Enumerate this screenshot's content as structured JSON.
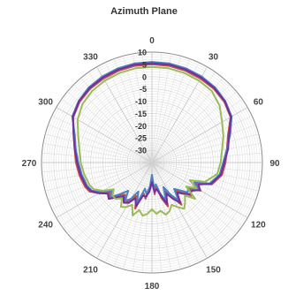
{
  "chart_data": {
    "type": "polar-line",
    "title": "Azimuth Plane",
    "angle_direction": "clockwise",
    "zero_angle_at": "top",
    "angle_ticks": [
      0,
      30,
      60,
      90,
      120,
      150,
      180,
      210,
      240,
      270,
      300,
      330
    ],
    "angle_tick_labels": [
      "0",
      "30",
      "60",
      "90",
      "120",
      "150",
      "180",
      "210",
      "240",
      "270",
      "300",
      "330"
    ],
    "r_range": [
      -35,
      10
    ],
    "r_ticks": [
      10,
      5,
      0,
      -5,
      -10,
      -15,
      -20,
      -25,
      -30
    ],
    "r_tick_labels": [
      "10",
      "5",
      "0",
      "-5",
      "-10",
      "-15",
      "-20",
      "-25",
      "-30"
    ],
    "grid": true,
    "legend": "none",
    "series": [
      {
        "color": "#c0504d",
        "angles": [
          0,
          10,
          20,
          30,
          40,
          50,
          60,
          70,
          80,
          90,
          100,
          110,
          115,
          120,
          125,
          130,
          135,
          140,
          145,
          150,
          155,
          160,
          165,
          170,
          175,
          180,
          185,
          190,
          195,
          200,
          205,
          210,
          215,
          220,
          225,
          230,
          235,
          240,
          245,
          250,
          260,
          270,
          280,
          290,
          300,
          310,
          320,
          330,
          340,
          350
        ],
        "values": [
          5,
          5,
          4.8,
          4.5,
          4.2,
          3.5,
          2,
          -2,
          -4,
          -5,
          -6,
          -9,
          -15,
          -12,
          -16,
          -14,
          -18,
          -20,
          -14,
          -19,
          -22,
          -16,
          -20,
          -25,
          -22,
          -28,
          -24,
          -20,
          -22,
          -15,
          -20,
          -17,
          -15,
          -18,
          -16,
          -12,
          -14,
          -10,
          -7,
          -6,
          -5,
          -4,
          -3,
          -1,
          2,
          3.5,
          4.2,
          4.5,
          4.8,
          5
        ]
      },
      {
        "color": "#4f81bd",
        "angles": [
          0,
          10,
          20,
          30,
          40,
          50,
          60,
          70,
          80,
          90,
          100,
          110,
          115,
          120,
          125,
          130,
          135,
          140,
          145,
          150,
          155,
          160,
          165,
          170,
          175,
          180,
          185,
          190,
          195,
          200,
          205,
          210,
          215,
          220,
          225,
          230,
          235,
          240,
          245,
          250,
          260,
          270,
          280,
          290,
          300,
          310,
          320,
          330,
          340,
          350
        ],
        "values": [
          6,
          6,
          5.8,
          5.5,
          5,
          4,
          2.5,
          -1,
          -4,
          -6,
          -7,
          -10,
          -16,
          -13,
          -17,
          -16,
          -19,
          -21,
          -16,
          -20,
          -24,
          -18,
          -22,
          -26,
          -24,
          -30,
          -25,
          -22,
          -24,
          -17,
          -22,
          -18,
          -16,
          -20,
          -17,
          -13,
          -15,
          -11,
          -8,
          -7,
          -6,
          -5,
          -3.5,
          -1.5,
          2.5,
          4,
          5,
          5.5,
          5.8,
          6
        ]
      },
      {
        "color": "#7030a0",
        "angles": [
          0,
          10,
          20,
          30,
          40,
          50,
          60,
          70,
          80,
          90,
          100,
          110,
          115,
          120,
          125,
          130,
          135,
          140,
          145,
          150,
          155,
          160,
          165,
          170,
          175,
          180,
          185,
          190,
          195,
          200,
          205,
          210,
          215,
          220,
          225,
          230,
          235,
          240,
          245,
          250,
          260,
          270,
          280,
          290,
          300,
          310,
          320,
          330,
          340,
          350
        ],
        "values": [
          5.5,
          5.5,
          5.3,
          5,
          4.6,
          3.8,
          2.2,
          -1.5,
          -3.5,
          -5.5,
          -6.5,
          -9.5,
          -14,
          -12.5,
          -15,
          -15,
          -17,
          -19,
          -15,
          -18,
          -21,
          -17,
          -21,
          -24,
          -23,
          -27,
          -23,
          -21,
          -21,
          -16,
          -19,
          -16,
          -15,
          -17,
          -15,
          -12,
          -13,
          -10,
          -7.5,
          -6.5,
          -5.5,
          -4.5,
          -3,
          -1,
          2.2,
          3.8,
          4.6,
          5,
          5.3,
          5.5
        ]
      },
      {
        "color": "#9bbb59",
        "angles": [
          0,
          10,
          20,
          30,
          40,
          50,
          60,
          70,
          80,
          90,
          100,
          110,
          115,
          120,
          125,
          130,
          135,
          140,
          145,
          150,
          155,
          160,
          165,
          170,
          175,
          180,
          185,
          190,
          195,
          200,
          205,
          210,
          215,
          220,
          225,
          230,
          235,
          240,
          245,
          250,
          260,
          270,
          280,
          290,
          300,
          310,
          320,
          330,
          340,
          350
        ],
        "values": [
          4,
          4,
          3.8,
          3.5,
          3,
          1,
          -2,
          -4,
          -6,
          -7,
          -8,
          -12,
          -18,
          -14,
          -18,
          -12,
          -16,
          -14,
          -12,
          -14,
          -16,
          -14,
          -13,
          -15,
          -14,
          -16,
          -14,
          -13,
          -15,
          -12,
          -16,
          -14,
          -13,
          -16,
          -14,
          -14,
          -16,
          -12,
          -9,
          -8,
          -7,
          -6,
          -5,
          -3,
          0,
          2,
          3,
          3.5,
          3.8,
          4
        ]
      }
    ]
  }
}
